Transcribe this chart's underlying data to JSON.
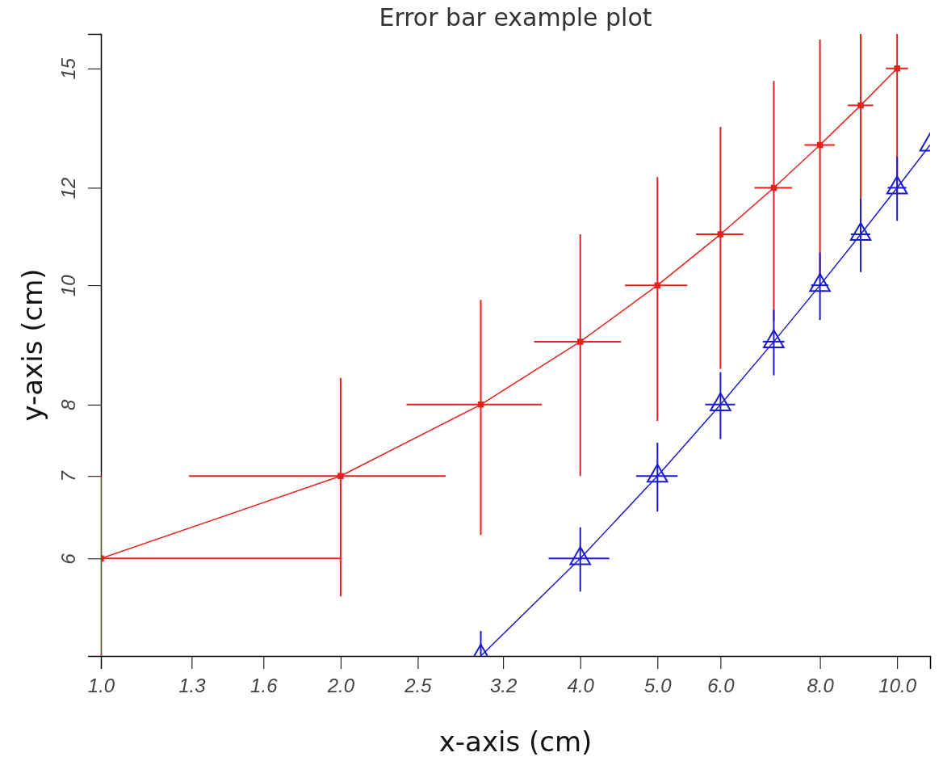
{
  "chart_data": {
    "type": "line",
    "title": "Error bar example plot",
    "xlabel": "x-axis (cm)",
    "ylabel": "y-axis (cm)",
    "log": "xy",
    "xlim": [
      1,
      11
    ],
    "ylim": [
      5,
      16
    ],
    "xticks": [
      {
        "value": 1,
        "label": "1.0"
      },
      {
        "value": 1.3,
        "label": "1.3"
      },
      {
        "value": 1.6,
        "label": "1.6"
      },
      {
        "value": 2,
        "label": "2.0"
      },
      {
        "value": 2.5,
        "label": "2.5"
      },
      {
        "value": 3.2,
        "label": "3.2"
      },
      {
        "value": 4,
        "label": "4.0"
      },
      {
        "value": 5,
        "label": "5.0"
      },
      {
        "value": 6,
        "label": "6.0"
      },
      {
        "value": 8,
        "label": "8.0"
      },
      {
        "value": 10,
        "label": "10.0"
      }
    ],
    "yticks": [
      6,
      7,
      8,
      10,
      12,
      15
    ],
    "series": [
      {
        "color": "#e8201c",
        "marker": "square",
        "x": [
          1,
          2,
          3,
          4,
          5,
          6,
          7,
          8,
          9,
          10
        ],
        "values": [
          6,
          7,
          8,
          9,
          10,
          11,
          12,
          13,
          14,
          15
        ],
        "errors": [
          1,
          1.41,
          1.73,
          2,
          2.24,
          2.45,
          2.65,
          2.83,
          [
            11,
            16
          ],
          [
            11.84,
            16
          ]
        ],
        "xerrors": [
          [
            1,
            2
          ],
          0.71,
          0.58,
          0.5,
          0.45,
          0.41,
          0.38,
          0.35,
          0.33,
          0.32
        ]
      },
      {
        "color": "#1a1ad0",
        "marker": "triangle",
        "x": [
          3,
          4,
          5,
          6,
          7,
          8,
          9,
          10,
          11
        ],
        "values": [
          5,
          6,
          7,
          8,
          9,
          10,
          11,
          12,
          13
        ],
        "errors": [
          [
            5,
            5.24
          ],
          0.36,
          0.45,
          0.5,
          0.55,
          0.63,
          0.75,
          0.72,
          null
        ],
        "xerrors": [
          null,
          0.35,
          0.3,
          0.26,
          0.22,
          0.2,
          0.25,
          0.27,
          null
        ]
      }
    ]
  }
}
